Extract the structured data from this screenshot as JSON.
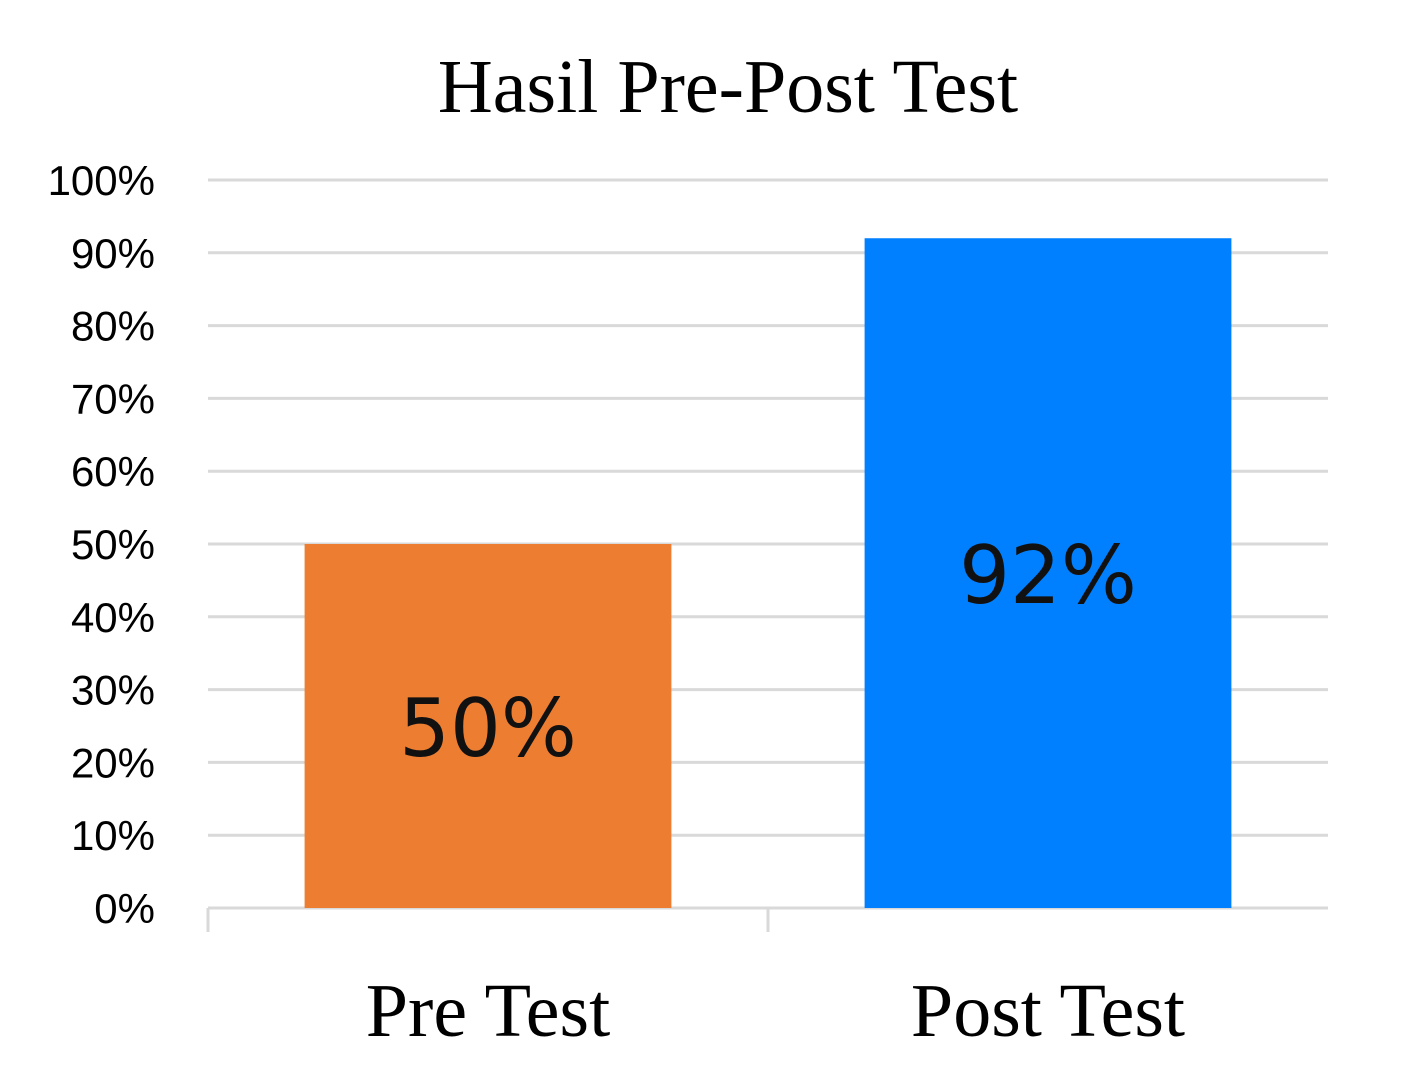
{
  "chart_data": {
    "type": "bar",
    "title": "Hasil Pre-Post Test",
    "categories": [
      "Pre Test",
      "Post Test"
    ],
    "values": [
      50,
      92
    ],
    "data_labels": [
      "50%",
      "92%"
    ],
    "bar_colors": [
      "#ED7D31",
      "#0080FF"
    ],
    "yticks": [
      "0%",
      "10%",
      "20%",
      "30%",
      "40%",
      "50%",
      "60%",
      "70%",
      "80%",
      "90%",
      "100%"
    ],
    "ylim": [
      0,
      100
    ],
    "grid": true,
    "legend": "none"
  }
}
